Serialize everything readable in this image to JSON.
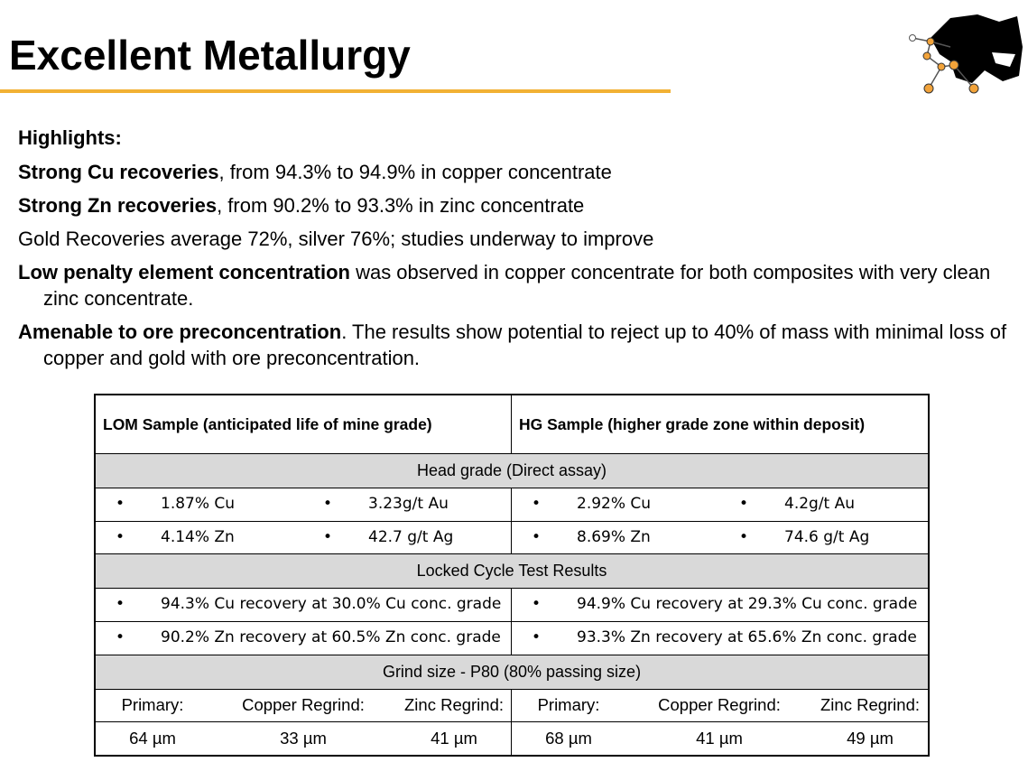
{
  "title": "Excellent Metallurgy",
  "highlights": {
    "heading": "Highlights:",
    "items": [
      {
        "bold": "Strong Cu recoveries",
        "text": ", from 94.3% to 94.9% in copper concentrate"
      },
      {
        "bold": "Strong Zn recoveries",
        "text": ", from 90.2% to 93.3% in zinc concentrate"
      },
      {
        "text": "Gold Recoveries average 72%, silver 76%; studies underway to improve"
      },
      {
        "bold": "Low penalty element concentration",
        "text": " was observed in copper concentrate for both composites with very clean zinc concentrate."
      },
      {
        "bold": "Amenable to ore preconcentration",
        "text": ". The results show potential to reject up to 40% of mass with minimal loss of copper and gold with ore preconcentration."
      }
    ]
  },
  "table": {
    "headers": [
      "LOM Sample (anticipated life of mine grade)",
      "HG Sample (higher grade zone within deposit)"
    ],
    "head_grade": {
      "title": "Head grade (Direct assay)",
      "lom": [
        [
          "1.87% Cu",
          "3.23g/t Au"
        ],
        [
          "4.14% Zn",
          "42.7 g/t Ag"
        ]
      ],
      "hg": [
        [
          "2.92% Cu",
          "4.2g/t Au"
        ],
        [
          "8.69% Zn",
          "74.6 g/t Ag"
        ]
      ]
    },
    "locked_cycle": {
      "title": "Locked Cycle Test Results",
      "lom": [
        "94.3% Cu recovery at 30.0% Cu conc. grade",
        "90.2% Zn recovery at 60.5% Zn conc. grade"
      ],
      "hg": [
        "94.9% Cu recovery at 29.3% Cu conc. grade",
        "93.3% Zn recovery at 65.6% Zn conc. grade"
      ]
    },
    "grind_size": {
      "title": "Grind size - P80 (80% passing size)",
      "lom": {
        "labels": [
          "Primary:",
          "Copper Regrind:",
          "Zinc Regrind:"
        ],
        "values": [
          "64 µm",
          "33 µm",
          "41 µm"
        ]
      },
      "hg": {
        "labels": [
          "Primary:",
          "Copper Regrind:",
          "Zinc Regrind:"
        ],
        "values": [
          "68 µm",
          "41 µm",
          "49 µm"
        ]
      }
    }
  }
}
